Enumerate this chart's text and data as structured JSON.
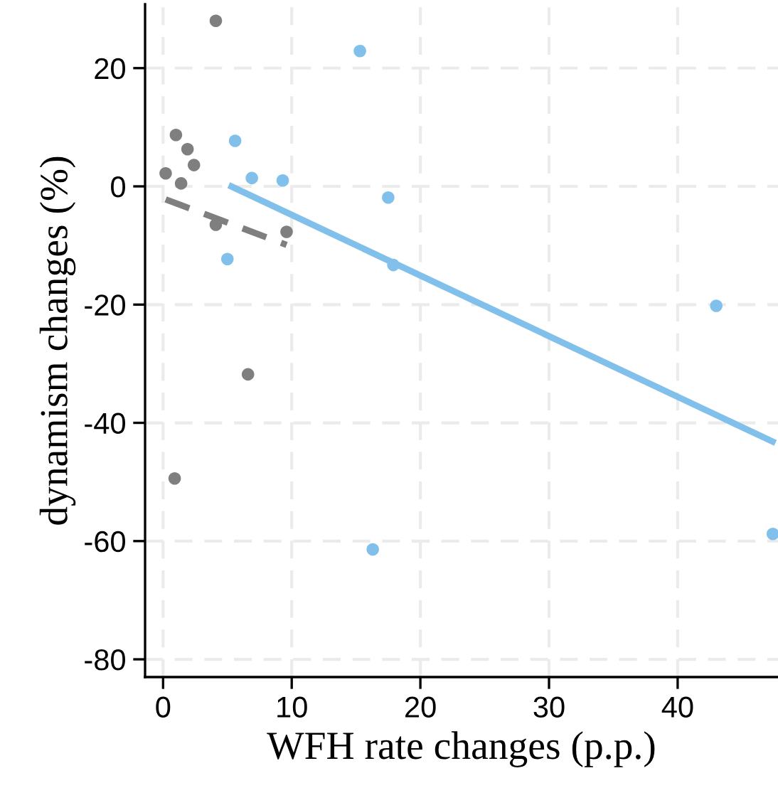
{
  "chart_data": {
    "type": "scatter",
    "xlabel": "WFH rate changes (p.p.)",
    "ylabel": "dynamism changes (%)",
    "xlim": [
      -1.4,
      47.8
    ],
    "ylim": [
      -83,
      30.8
    ],
    "xticks": [
      0,
      10,
      20,
      30,
      40
    ],
    "yticks": [
      -80,
      -60,
      -40,
      -20,
      0,
      20
    ],
    "grid": true,
    "legend": false,
    "series": [
      {
        "marker": "circle",
        "color": "#7f7f7f",
        "x": [
          1.0,
          1.9,
          2.4,
          0.2,
          1.4,
          4.1,
          4.1,
          9.6,
          6.6,
          0.9
        ],
        "values": [
          8.7,
          6.3,
          3.6,
          2.2,
          0.5,
          28,
          -6.5,
          -7.7,
          -31.8,
          -49.4
        ]
      },
      {
        "marker": "circle",
        "color": "#80c0ea",
        "x": [
          15.3,
          5.6,
          6.9,
          9.3,
          17.5,
          5.0,
          17.9,
          43.0,
          16.3,
          47.4
        ],
        "values": [
          22.9,
          7.7,
          1.4,
          1.0,
          -1.9,
          -12.3,
          -13.3,
          -20.2,
          -61.4,
          -58.8
        ]
      },
      {
        "type": "line",
        "color": "#80c0ea",
        "line_style": "solid",
        "x": [
          5.1,
          47.6
        ],
        "values": [
          0.2,
          -43.4
        ]
      },
      {
        "type": "line",
        "color": "#7f7f7f",
        "line_style": "dashed",
        "x": [
          0.2,
          9.6
        ],
        "values": [
          -2.2,
          -9.9
        ]
      }
    ]
  }
}
